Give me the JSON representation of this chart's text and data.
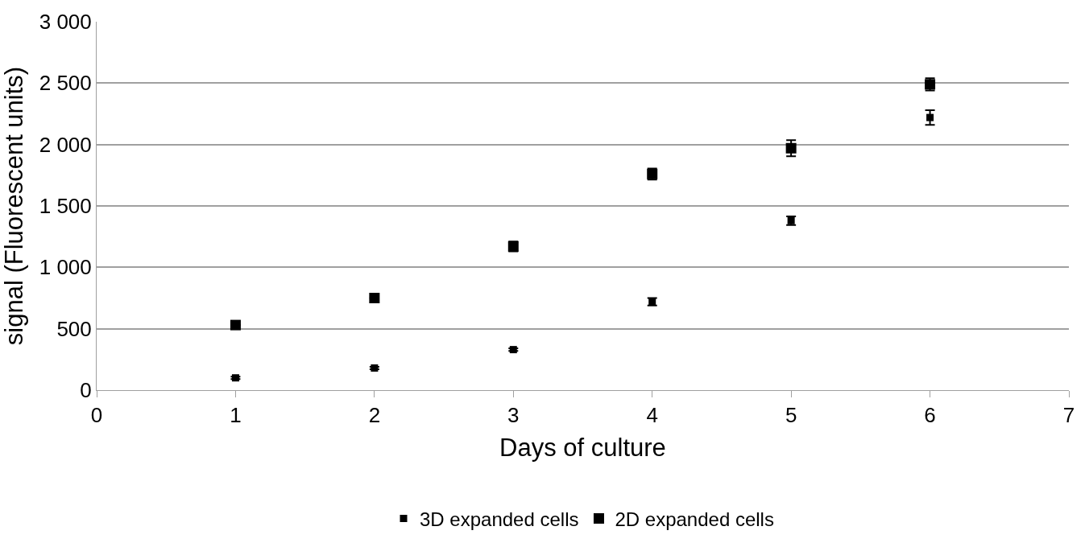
{
  "chart_data": {
    "type": "scatter",
    "xlabel": "Days of culture",
    "ylabel": "signal (Fluorescent units)",
    "x": [
      1,
      2,
      3,
      4,
      5,
      6
    ],
    "series": [
      {
        "name": "3D expanded cells",
        "color": "#000000",
        "marker": "square",
        "values": [
          100,
          180,
          330,
          720,
          1380,
          2220
        ],
        "errors": [
          10,
          10,
          10,
          30,
          35,
          60
        ]
      },
      {
        "name": "2D expanded cells",
        "color": "#000000",
        "marker": "square",
        "values": [
          530,
          750,
          1170,
          1760,
          1970,
          2490
        ],
        "errors": [
          null,
          null,
          40,
          45,
          65,
          50
        ]
      }
    ],
    "xlim": [
      0,
      7
    ],
    "xticks": [
      0,
      1,
      2,
      3,
      4,
      5,
      6,
      7
    ],
    "ylim": [
      0,
      3000
    ],
    "yticks": [
      0,
      {
        "value": 500,
        "label": "500"
      },
      {
        "value": 1000,
        "label": "1 000"
      },
      {
        "value": 1500,
        "label": "1 500"
      },
      {
        "value": 2000,
        "label": "2 000"
      },
      {
        "value": 2500,
        "label": "2 500"
      },
      {
        "value": 3000,
        "label": "3 000"
      }
    ],
    "grid": "y",
    "legend": "bottom"
  }
}
